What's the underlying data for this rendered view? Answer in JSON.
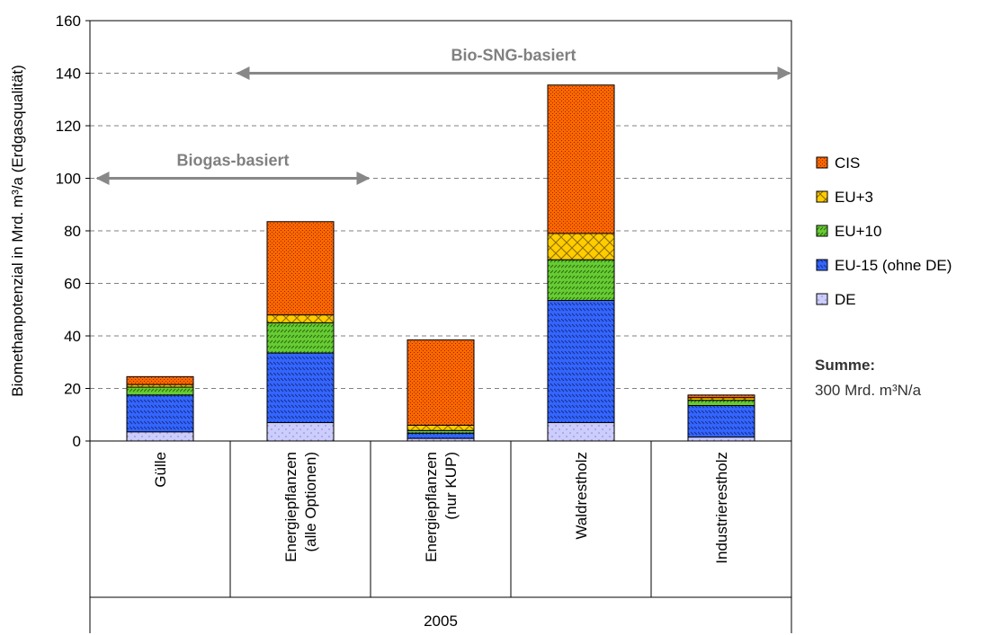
{
  "chart_data": {
    "type": "bar",
    "stacked": true,
    "ylabel": "Biomethanpotenzial in Mrd. m³/a (Erdgasqualität)",
    "ylim": [
      0,
      160
    ],
    "yticks": [
      "0",
      "20",
      "40",
      "60",
      "80",
      "100",
      "120",
      "140",
      "160"
    ],
    "ytick_values": [
      0,
      20,
      40,
      60,
      80,
      100,
      120,
      140,
      160
    ],
    "grid": "horizontal dashed",
    "categories": [
      [
        "Gülle"
      ],
      [
        "Energiepflanzen",
        "(alle Optionen)"
      ],
      [
        "Energiepflanzen",
        "(nur KUP)"
      ],
      [
        "Waldrestholz"
      ],
      [
        "Industrierestholz"
      ]
    ],
    "group_label": "2005",
    "series": [
      {
        "name": "DE",
        "color": "#CCCCFF",
        "pattern": "dots",
        "values": [
          3.5,
          7,
          1,
          7,
          1.5
        ]
      },
      {
        "name": "EU-15 (ohne DE)",
        "color": "#3366FF",
        "pattern": "diagonal-lines",
        "values": [
          14,
          26.5,
          2,
          46.5,
          12
        ]
      },
      {
        "name": "EU+10",
        "color": "#66CC33",
        "pattern": "diagonal-lines",
        "values": [
          3,
          11.5,
          1,
          15.5,
          2
        ]
      },
      {
        "name": "EU+3",
        "color": "#FFCC00",
        "pattern": "crosshatch",
        "values": [
          1,
          3,
          2,
          10,
          1
        ]
      },
      {
        "name": "CIS",
        "color": "#FF6600",
        "pattern": "fine-dots",
        "values": [
          3,
          35.5,
          32.5,
          56.5,
          1
        ]
      }
    ],
    "legend_order": [
      "CIS",
      "EU+3",
      "EU+10",
      "EU-15 (ohne DE)",
      "DE"
    ],
    "legend_placement": "right",
    "annotations": [
      {
        "text": "Bio-SNG-basiert",
        "type": "double-arrow",
        "y": 140,
        "from_category_edge": 1,
        "to_category_edge": 5
      },
      {
        "text": "Biogas-basiert",
        "type": "double-arrow",
        "y": 100,
        "from_category_edge": 0,
        "to_category_edge": 2
      }
    ],
    "sum": {
      "label": "Summe:",
      "value": "300 Mrd. m³N/a"
    }
  }
}
